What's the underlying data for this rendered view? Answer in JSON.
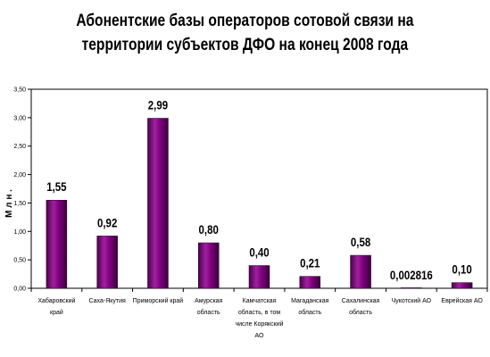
{
  "chart_data": {
    "type": "bar",
    "title_lines": [
      "Абонентские базы операторов сотовой связи на",
      "территории субъектов ДФО на конец 2008 года"
    ],
    "ylabel": "М л н .",
    "xlabel": "",
    "ylim": [
      0,
      3.5
    ],
    "y_ticks": [
      "0,00",
      "0,50",
      "1,00",
      "1,50",
      "2,00",
      "2,50",
      "3,00",
      "3,50"
    ],
    "categories": [
      [
        "Хабаровский",
        "край"
      ],
      [
        "Саха-Якутия"
      ],
      [
        "Приморский край"
      ],
      [
        "Амурская",
        "область"
      ],
      [
        "Камчатская",
        "область, в том",
        "числе Корякский",
        "АО"
      ],
      [
        "Магаданская",
        "область"
      ],
      [
        "Сахалинская",
        "область"
      ],
      [
        "Чукотский АО"
      ],
      [
        "Еврейская АО"
      ]
    ],
    "values": [
      1.55,
      0.92,
      2.99,
      0.8,
      0.4,
      0.21,
      0.58,
      0.002816,
      0.1
    ],
    "data_labels": [
      "1,55",
      "0,92",
      "2,99",
      "0,80",
      "0,40",
      "0,21",
      "0,58",
      "0,002816",
      "0,10"
    ],
    "bar_color": "#800080",
    "grid": false,
    "legend": "none"
  }
}
